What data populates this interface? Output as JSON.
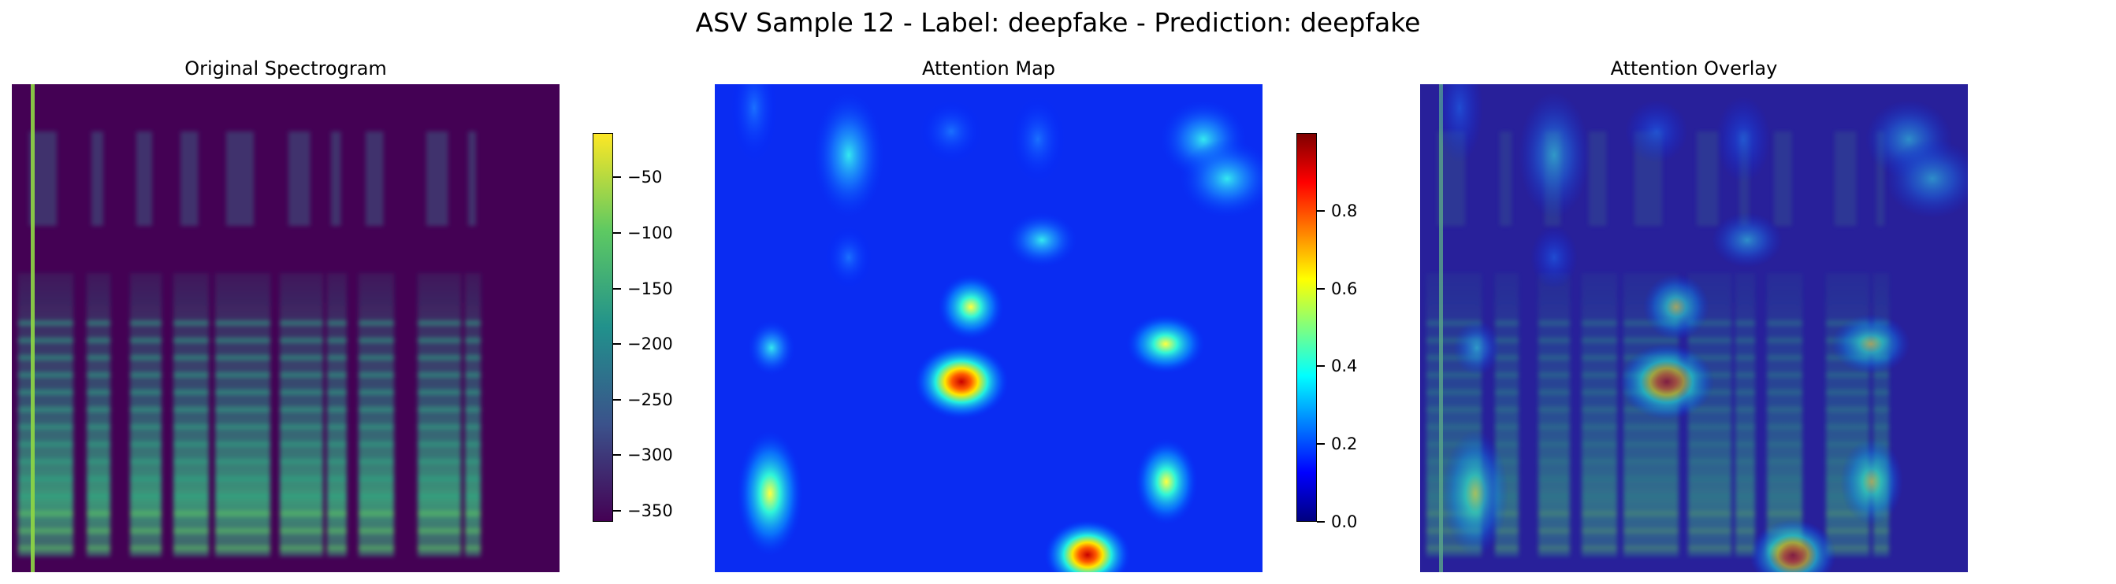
{
  "chart_data": [
    {
      "type": "heatmap",
      "title": "Original Spectrogram",
      "colormap": "viridis",
      "colorbar": {
        "ticks": [
          -50,
          -100,
          -150,
          -200,
          -250,
          -300,
          -350
        ],
        "tick_labels": [
          "−50",
          "−100",
          "−150",
          "−200",
          "−250",
          "−300",
          "−350"
        ],
        "range": [
          -360,
          -10
        ]
      },
      "axes_visible": false
    },
    {
      "type": "heatmap",
      "title": "Attention Map",
      "colormap": "jet",
      "colorbar": {
        "ticks": [
          0.8,
          0.6,
          0.4,
          0.2,
          0.0
        ],
        "tick_labels": [
          "0.8",
          "0.6",
          "0.4",
          "0.2",
          "0.0"
        ],
        "range": [
          0.0,
          1.0
        ]
      },
      "axes_visible": false
    },
    {
      "type": "heatmap",
      "title": "Attention Overlay",
      "colormap": "viridis + jet overlay",
      "axes_visible": false
    }
  ],
  "figure": {
    "suptitle": "ASV Sample 12 - Label: deepfake - Prediction: deepfake"
  }
}
